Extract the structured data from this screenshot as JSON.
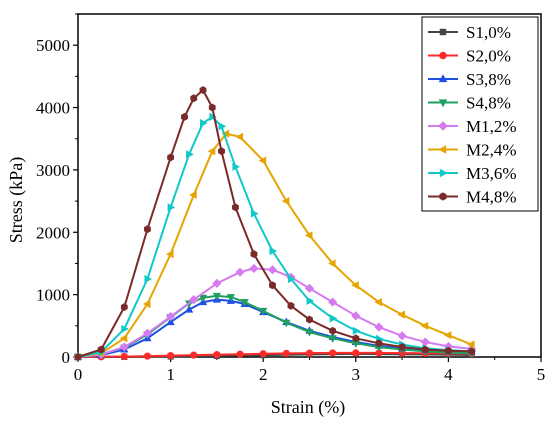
{
  "chart_data": {
    "type": "line",
    "title": "",
    "xlabel": "Strain (%)",
    "ylabel": "Stress (kPa)",
    "xlim": [
      0,
      5
    ],
    "ylim": [
      0,
      5500
    ],
    "xticks": [
      "0",
      "1",
      "2",
      "3",
      "4",
      "5"
    ],
    "yticks": [
      "0",
      "1000",
      "2000",
      "3000",
      "4000",
      "5000"
    ],
    "legend_position": "top-right",
    "grid": false,
    "series": [
      {
        "name": "S1,0%",
        "color": "#444444",
        "marker": "square",
        "points": [
          [
            0,
            0
          ],
          [
            0.5,
            2
          ],
          [
            1,
            8
          ],
          [
            1.5,
            18
          ],
          [
            2,
            30
          ],
          [
            2.5,
            42
          ],
          [
            3,
            50
          ],
          [
            3.5,
            45
          ],
          [
            4,
            38
          ],
          [
            4.25,
            32
          ]
        ]
      },
      {
        "name": "S2,0%",
        "color": "#ff2a2a",
        "marker": "circle",
        "points": [
          [
            0,
            0
          ],
          [
            0.25,
            3
          ],
          [
            0.5,
            8
          ],
          [
            0.75,
            14
          ],
          [
            1,
            22
          ],
          [
            1.25,
            30
          ],
          [
            1.5,
            38
          ],
          [
            1.75,
            45
          ],
          [
            2,
            52
          ],
          [
            2.25,
            58
          ],
          [
            2.5,
            62
          ],
          [
            2.75,
            65
          ],
          [
            3,
            66
          ],
          [
            3.25,
            65
          ],
          [
            3.5,
            63
          ],
          [
            3.75,
            60
          ],
          [
            4,
            57
          ],
          [
            4.25,
            55
          ]
        ]
      },
      {
        "name": "S3,8%",
        "color": "#1f4fe6",
        "marker": "triangle-up",
        "points": [
          [
            0,
            0
          ],
          [
            0.25,
            30
          ],
          [
            0.5,
            120
          ],
          [
            0.75,
            300
          ],
          [
            1,
            560
          ],
          [
            1.2,
            760
          ],
          [
            1.35,
            880
          ],
          [
            1.5,
            920
          ],
          [
            1.65,
            900
          ],
          [
            1.8,
            850
          ],
          [
            2,
            720
          ],
          [
            2.25,
            560
          ],
          [
            2.5,
            420
          ],
          [
            2.75,
            320
          ],
          [
            3,
            240
          ],
          [
            3.25,
            180
          ],
          [
            3.5,
            140
          ],
          [
            3.75,
            110
          ],
          [
            4,
            90
          ],
          [
            4.25,
            80
          ]
        ]
      },
      {
        "name": "S4,8%",
        "color": "#20a060",
        "marker": "triangle-down",
        "points": [
          [
            0,
            0
          ],
          [
            0.25,
            40
          ],
          [
            0.5,
            150
          ],
          [
            0.75,
            360
          ],
          [
            1,
            640
          ],
          [
            1.2,
            860
          ],
          [
            1.35,
            950
          ],
          [
            1.5,
            980
          ],
          [
            1.65,
            960
          ],
          [
            1.8,
            880
          ],
          [
            2,
            740
          ],
          [
            2.25,
            550
          ],
          [
            2.5,
            400
          ],
          [
            2.75,
            300
          ],
          [
            3,
            220
          ],
          [
            3.25,
            160
          ],
          [
            3.5,
            120
          ],
          [
            3.75,
            90
          ],
          [
            4,
            70
          ],
          [
            4.25,
            60
          ]
        ]
      },
      {
        "name": "M1,2%",
        "color": "#d67af0",
        "marker": "diamond",
        "points": [
          [
            0,
            0
          ],
          [
            0.25,
            40
          ],
          [
            0.5,
            160
          ],
          [
            0.75,
            380
          ],
          [
            1,
            650
          ],
          [
            1.25,
            920
          ],
          [
            1.5,
            1180
          ],
          [
            1.75,
            1360
          ],
          [
            1.9,
            1420
          ],
          [
            2.1,
            1400
          ],
          [
            2.3,
            1280
          ],
          [
            2.5,
            1100
          ],
          [
            2.75,
            880
          ],
          [
            3,
            660
          ],
          [
            3.25,
            480
          ],
          [
            3.5,
            340
          ],
          [
            3.75,
            240
          ],
          [
            4,
            170
          ],
          [
            4.25,
            130
          ]
        ]
      },
      {
        "name": "M2,4%",
        "color": "#e6a400",
        "marker": "triangle-left",
        "points": [
          [
            0,
            0
          ],
          [
            0.25,
            60
          ],
          [
            0.5,
            300
          ],
          [
            0.75,
            850
          ],
          [
            1,
            1650
          ],
          [
            1.25,
            2600
          ],
          [
            1.45,
            3300
          ],
          [
            1.6,
            3580
          ],
          [
            1.75,
            3530
          ],
          [
            2,
            3150
          ],
          [
            2.25,
            2500
          ],
          [
            2.5,
            1950
          ],
          [
            2.75,
            1500
          ],
          [
            3,
            1150
          ],
          [
            3.25,
            880
          ],
          [
            3.5,
            680
          ],
          [
            3.75,
            500
          ],
          [
            4,
            350
          ],
          [
            4.25,
            200
          ]
        ]
      },
      {
        "name": "M3,6%",
        "color": "#10c8c8",
        "marker": "triangle-right",
        "points": [
          [
            0,
            0
          ],
          [
            0.25,
            80
          ],
          [
            0.5,
            450
          ],
          [
            0.75,
            1250
          ],
          [
            1,
            2400
          ],
          [
            1.2,
            3250
          ],
          [
            1.35,
            3750
          ],
          [
            1.45,
            3850
          ],
          [
            1.55,
            3700
          ],
          [
            1.7,
            3050
          ],
          [
            1.9,
            2300
          ],
          [
            2.1,
            1700
          ],
          [
            2.3,
            1250
          ],
          [
            2.5,
            900
          ],
          [
            2.75,
            620
          ],
          [
            3,
            420
          ],
          [
            3.25,
            290
          ],
          [
            3.5,
            200
          ],
          [
            3.75,
            140
          ],
          [
            4,
            110
          ],
          [
            4.25,
            90
          ]
        ]
      },
      {
        "name": "M4,8%",
        "color": "#7b2a2a",
        "marker": "hexagon",
        "points": [
          [
            0,
            0
          ],
          [
            0.25,
            120
          ],
          [
            0.5,
            800
          ],
          [
            0.75,
            2050
          ],
          [
            1,
            3200
          ],
          [
            1.15,
            3850
          ],
          [
            1.25,
            4150
          ],
          [
            1.35,
            4280
          ],
          [
            1.45,
            4000
          ],
          [
            1.55,
            3300
          ],
          [
            1.7,
            2400
          ],
          [
            1.9,
            1650
          ],
          [
            2.1,
            1150
          ],
          [
            2.3,
            820
          ],
          [
            2.5,
            600
          ],
          [
            2.75,
            420
          ],
          [
            3,
            300
          ],
          [
            3.25,
            220
          ],
          [
            3.5,
            160
          ],
          [
            3.75,
            120
          ],
          [
            4,
            100
          ],
          [
            4.25,
            90
          ]
        ]
      }
    ]
  }
}
